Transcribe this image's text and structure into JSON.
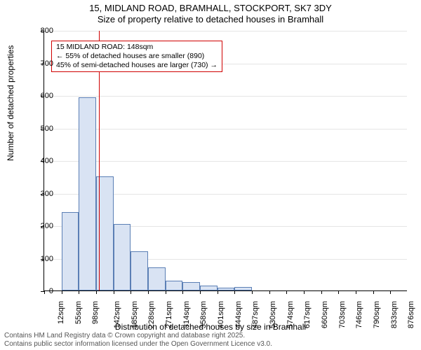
{
  "title": {
    "line1": "15, MIDLAND ROAD, BRAMHALL, STOCKPORT, SK7 3DY",
    "line2": "Size of property relative to detached houses in Bramhall"
  },
  "chart": {
    "type": "histogram",
    "ylabel": "Number of detached properties",
    "xlabel": "Distribution of detached houses by size in Bramhall",
    "ylim": [
      0,
      800
    ],
    "ytick_step": 100,
    "grid_color": "#e5e5e5",
    "bar_fill": "#d9e3f3",
    "bar_stroke": "#5b7fb5",
    "background": "#ffffff",
    "ref_line": {
      "x": 148,
      "color": "#d00000"
    },
    "annotation": {
      "line1": "15 MIDLAND ROAD: 148sqm",
      "line2": "← 55% of detached houses are smaller (890)",
      "line3": "45% of semi-detached houses are larger (730) →",
      "border_color": "#d00000",
      "fontsize": 10.5
    },
    "bins": {
      "start": 12,
      "width": 43.2,
      "count": 21,
      "labels": [
        "12sqm",
        "55sqm",
        "98sqm",
        "142sqm",
        "185sqm",
        "228sqm",
        "271sqm",
        "314sqm",
        "358sqm",
        "401sqm",
        "444sqm",
        "487sqm",
        "530sqm",
        "574sqm",
        "617sqm",
        "660sqm",
        "703sqm",
        "746sqm",
        "790sqm",
        "833sqm",
        "876sqm"
      ]
    },
    "values": [
      0,
      240,
      593,
      350,
      205,
      120,
      70,
      30,
      25,
      15,
      8,
      10,
      0,
      0,
      0,
      0,
      0,
      0,
      0,
      0,
      0
    ]
  },
  "footer": {
    "line1": "Contains HM Land Registry data © Crown copyright and database right 2025.",
    "line2": "Contains public sector information licensed under the Open Government Licence v3.0."
  }
}
